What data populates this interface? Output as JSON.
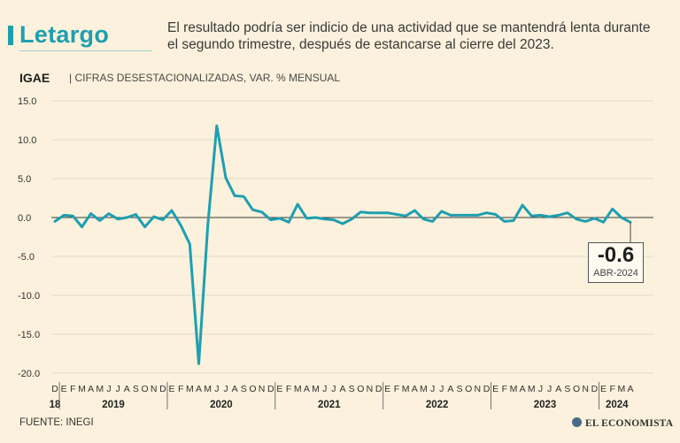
{
  "header": {
    "title": "Letargo",
    "subtitle": "El resultado podría ser indicio de una actividad que se mantendrá lenta durante el segundo trimestre, después de estancarse al cierre del 2023."
  },
  "chart_label": "IGAE",
  "chart_sublabel": "| CIFRAS DESESTACIONALIZADAS, VAR. % MENSUAL",
  "source": "FUENTE: INEGI",
  "logo": "EL ECONOMISTA",
  "callout": {
    "value": "-0.6",
    "date": "ABR-2024"
  },
  "colors": {
    "line": "#1d9fb0",
    "background": "#fbf1dc",
    "grid": "#d9d2c3"
  },
  "chart_data": {
    "type": "line",
    "title": "",
    "xlabel": "",
    "ylabel": "",
    "ylim": [
      -20,
      15
    ],
    "yticks": [
      "15.0",
      "10.0",
      "5.0",
      "0.0",
      "-5.0",
      "-10.0",
      "-15.0",
      "-20.0"
    ],
    "grid": true,
    "month_letters": [
      "D",
      "E",
      "F",
      "M",
      "A",
      "M",
      "J",
      "J",
      "A",
      "S",
      "O",
      "N",
      "D",
      "E",
      "F",
      "M",
      "A",
      "M",
      "J",
      "J",
      "A",
      "S",
      "O",
      "N",
      "D",
      "E",
      "F",
      "M",
      "A",
      "M",
      "J",
      "J",
      "A",
      "S",
      "O",
      "N",
      "D",
      "E",
      "F",
      "M",
      "A",
      "M",
      "J",
      "J",
      "A",
      "S",
      "O",
      "N",
      "D",
      "E",
      "F",
      "M",
      "A",
      "M",
      "J",
      "J",
      "A",
      "S",
      "O",
      "N",
      "D",
      "E",
      "F",
      "M",
      "A"
    ],
    "year_labels": [
      "18",
      "2019",
      "2020",
      "2021",
      "2022",
      "2023",
      "2024"
    ],
    "series": [
      {
        "values": [
          -0.5,
          0.3,
          0.2,
          -1.2,
          0.5,
          -0.4,
          0.5,
          -0.2,
          0.0,
          0.4,
          -1.2,
          0.1,
          -0.3,
          0.9,
          -1.0,
          -3.4,
          -18.8,
          -1.0,
          11.8,
          5.1,
          2.8,
          2.7,
          1.0,
          0.7,
          -0.3,
          -0.1,
          -0.6,
          1.7,
          -0.1,
          0.0,
          -0.2,
          -0.3,
          -0.8,
          -0.2,
          0.7,
          0.6,
          0.6,
          0.6,
          0.4,
          0.2,
          0.9,
          -0.2,
          -0.5,
          0.8,
          0.3,
          0.3,
          0.3,
          0.3,
          0.6,
          0.4,
          -0.5,
          -0.4,
          1.6,
          0.2,
          0.3,
          0.1,
          0.3,
          0.6,
          -0.2,
          -0.5,
          -0.1,
          -0.6,
          1.1,
          0.0,
          -0.6
        ]
      }
    ]
  }
}
